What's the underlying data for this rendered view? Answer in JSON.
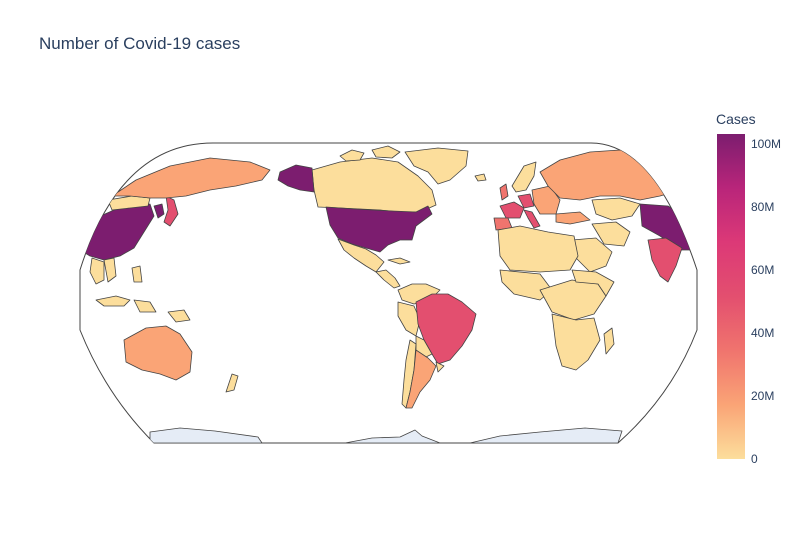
{
  "title": "Number of Covid-19 cases",
  "colorbar": {
    "title": "Cases",
    "ticks": [
      "100M",
      "80M",
      "60M",
      "40M",
      "20M",
      "0"
    ],
    "tick_values": [
      100000000,
      80000000,
      60000000,
      40000000,
      20000000,
      0
    ],
    "max": 103000000,
    "colorscale": [
      "#fcde9c",
      "#faa476",
      "#f0746e",
      "#e34f6f",
      "#dc3977",
      "#b9257a",
      "#7c1d6f"
    ]
  },
  "map": {
    "projection": "natural earth",
    "center": "pacific",
    "colors": {
      "ocean_frame": "#ffffff",
      "border": "#444444",
      "no_data": "#e5ecf6",
      "very_high": "#7c1d6f",
      "high": "#b9257a",
      "mid_high": "#e34f6f",
      "mid": "#f0746e",
      "low_mid": "#faa476",
      "low": "#fcde9c"
    }
  }
}
